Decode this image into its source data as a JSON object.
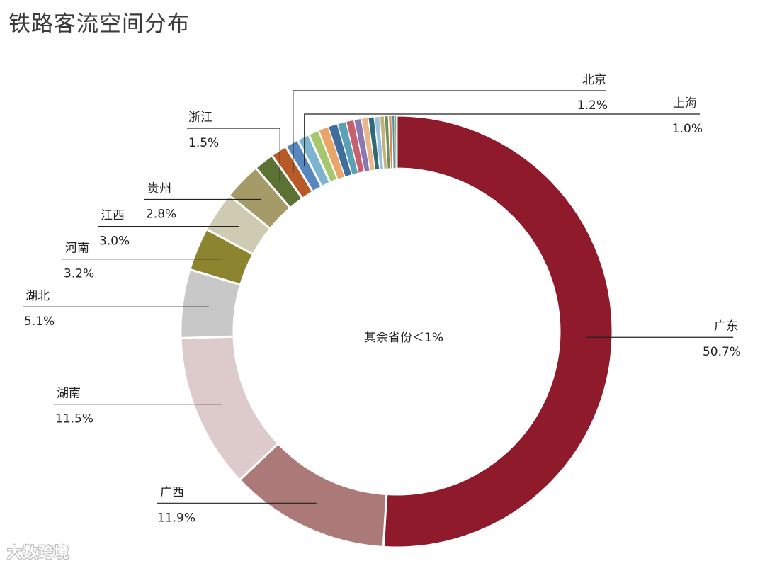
{
  "chart_data": {
    "type": "pie",
    "title": "铁路客流空间分布",
    "center_label": "其余省份＜1%",
    "slices": [
      {
        "name": "广东",
        "value": 50.7,
        "label": "50.7%",
        "color": "#8e1a2c",
        "labeled": true
      },
      {
        "name": "广西",
        "value": 11.9,
        "label": "11.9%",
        "color": "#ab7a78",
        "labeled": true
      },
      {
        "name": "湖南",
        "value": 11.5,
        "label": "11.5%",
        "color": "#dccbca",
        "labeled": true
      },
      {
        "name": "湖北",
        "value": 5.1,
        "label": "5.1%",
        "color": "#c8c8c8",
        "labeled": true
      },
      {
        "name": "河南",
        "value": 3.2,
        "label": "3.2%",
        "color": "#8d8430",
        "labeled": true
      },
      {
        "name": "江西",
        "value": 3.0,
        "label": "3.0%",
        "color": "#cfcbb3",
        "labeled": true
      },
      {
        "name": "贵州",
        "value": 2.8,
        "label": "2.8%",
        "color": "#a49b68",
        "labeled": true
      },
      {
        "name": "浙江",
        "value": 1.5,
        "label": "1.5%",
        "color": "#5c7234",
        "labeled": true
      },
      {
        "name": "北京",
        "value": 1.2,
        "label": "1.2%",
        "color": "#b85a28",
        "labeled": true
      },
      {
        "name": "上海",
        "value": 1.0,
        "label": "1.0%",
        "color": "#5787bd",
        "labeled": true
      },
      {
        "name": "",
        "value": 0.9,
        "label": "",
        "color": "#7cb4cf",
        "labeled": false
      },
      {
        "name": "",
        "value": 0.8,
        "label": "",
        "color": "#a6c76d",
        "labeled": false
      },
      {
        "name": "",
        "value": 0.75,
        "label": "",
        "color": "#eaa66a",
        "labeled": false
      },
      {
        "name": "",
        "value": 0.7,
        "label": "",
        "color": "#3f6d9e",
        "labeled": false
      },
      {
        "name": "",
        "value": 0.65,
        "label": "",
        "color": "#5aa1b8",
        "labeled": false
      },
      {
        "name": "",
        "value": 0.6,
        "label": "",
        "color": "#c75f6e",
        "labeled": false
      },
      {
        "name": "",
        "value": 0.55,
        "label": "",
        "color": "#8c78b0",
        "labeled": false
      },
      {
        "name": "",
        "value": 0.5,
        "label": "",
        "color": "#e6b88c",
        "labeled": false
      },
      {
        "name": "",
        "value": 0.45,
        "label": "",
        "color": "#2e6a78",
        "labeled": false
      },
      {
        "name": "",
        "value": 0.4,
        "label": "",
        "color": "#9bc2d8",
        "labeled": false
      },
      {
        "name": "",
        "value": 0.35,
        "label": "",
        "color": "#c2b280",
        "labeled": false
      },
      {
        "name": "",
        "value": 0.3,
        "label": "",
        "color": "#6f8f5a",
        "labeled": false
      },
      {
        "name": "",
        "value": 0.25,
        "label": "",
        "color": "#d98c5a",
        "labeled": false
      },
      {
        "name": "",
        "value": 0.2,
        "label": "",
        "color": "#4c8ab0",
        "labeled": false
      },
      {
        "name": "",
        "value": 0.15,
        "label": "",
        "color": "#86b35c",
        "labeled": false
      }
    ]
  },
  "watermark": "大数跨境"
}
